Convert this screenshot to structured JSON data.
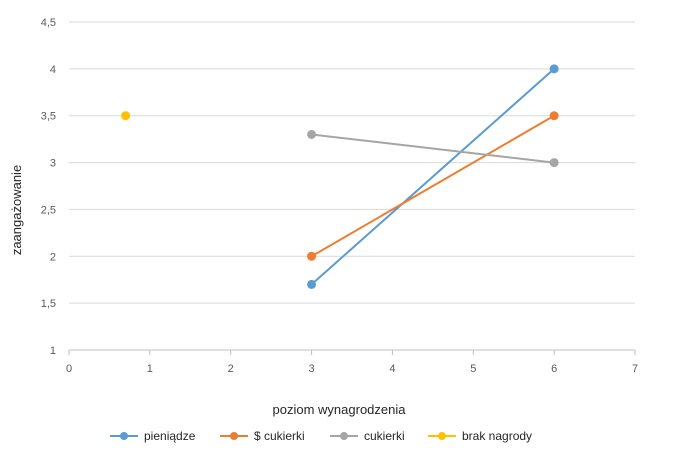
{
  "chart_data": {
    "type": "scatter",
    "xlabel": "poziom wynagrodzenia",
    "ylabel": "zaangażowanie",
    "xlim": [
      0,
      7
    ],
    "ylim": [
      1,
      4.5
    ],
    "x_ticks": [
      0,
      1,
      2,
      3,
      4,
      5,
      6,
      7
    ],
    "y_ticks": [
      1,
      1.5,
      2,
      2.5,
      3,
      3.5,
      4,
      4.5
    ],
    "x_tick_labels": [
      "0",
      "1",
      "2",
      "3",
      "4",
      "5",
      "6",
      "7"
    ],
    "y_tick_labels": [
      "1",
      "1,5",
      "2",
      "2,5",
      "3",
      "3,5",
      "4",
      "4,5"
    ],
    "grid": "horizontal",
    "legend_position": "bottom",
    "series": [
      {
        "name": "pieniądze",
        "color": "#5B9BD5",
        "points": [
          [
            3,
            1.7
          ],
          [
            6,
            4.0
          ]
        ]
      },
      {
        "name": "$ cukierki",
        "color": "#ED7D31",
        "points": [
          [
            3,
            2.0
          ],
          [
            6,
            3.5
          ]
        ]
      },
      {
        "name": "cukierki",
        "color": "#A5A5A5",
        "points": [
          [
            3,
            3.3
          ],
          [
            6,
            3.0
          ]
        ]
      },
      {
        "name": "brak nagrody",
        "color": "#FFC000",
        "points": [
          [
            0.7,
            3.5
          ]
        ]
      }
    ]
  }
}
